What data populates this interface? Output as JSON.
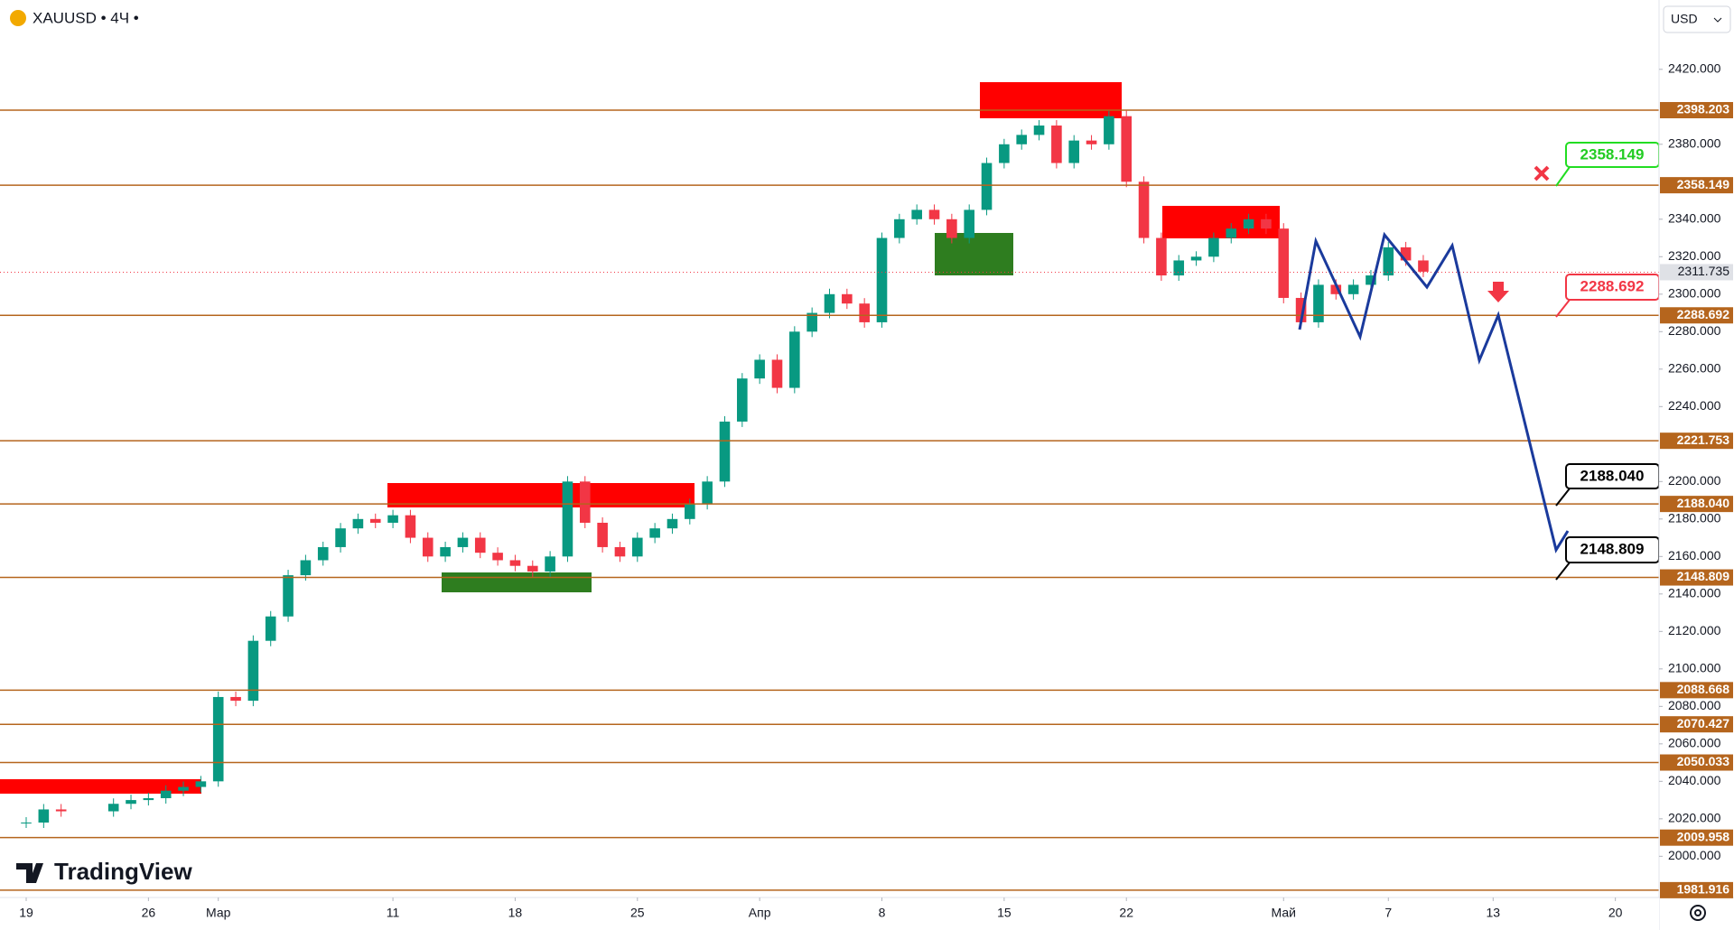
{
  "header": {
    "symbol": "XAUUSD • 4Ч •",
    "currency": "USD",
    "logo": "TradingView"
  },
  "chart_data": {
    "type": "candlestick",
    "x": [
      0,
      1,
      2,
      5,
      6,
      7,
      8,
      9,
      10,
      11,
      12,
      13,
      14,
      15,
      16,
      17,
      18,
      19,
      20,
      21,
      22,
      23,
      24,
      25,
      26,
      27,
      28,
      29,
      30,
      31,
      32,
      33,
      34,
      35,
      36,
      37,
      38,
      39,
      40,
      41,
      42,
      43,
      44,
      45,
      46,
      47,
      48,
      49,
      50,
      51,
      52,
      53,
      54,
      55,
      56,
      57,
      58,
      59,
      60,
      61,
      62,
      63,
      64,
      65,
      66,
      67,
      68,
      69,
      70,
      71,
      72,
      73,
      74,
      75,
      76,
      77,
      78,
      79,
      80
    ],
    "values": [
      2018,
      2025,
      2024,
      2028,
      2030,
      2031,
      2035,
      2037,
      2040,
      2085,
      2083,
      2115,
      2128,
      2150,
      2158,
      2165,
      2175,
      2180,
      2178,
      2182,
      2170,
      2160,
      2165,
      2170,
      2162,
      2158,
      2155,
      2152,
      2160,
      2200,
      2178,
      2165,
      2160,
      2170,
      2175,
      2180,
      2188,
      2200,
      2232,
      2255,
      2265,
      2250,
      2280,
      2290,
      2300,
      2295,
      2285,
      2330,
      2340,
      2345,
      2340,
      2330,
      2345,
      2370,
      2380,
      2385,
      2390,
      2370,
      2382,
      2380,
      2395,
      2360,
      2330,
      2310,
      2318,
      2320,
      2330,
      2335,
      2340,
      2335,
      2298,
      2285,
      2305,
      2300,
      2305,
      2310,
      2325,
      2318,
      2312
    ],
    "up_color": "#089981",
    "down_color": "#f23645",
    "xlim": [
      -1.5,
      93.5
    ],
    "xticks": [
      {
        "value": 0,
        "label": "19"
      },
      {
        "value": 7,
        "label": "26"
      },
      {
        "value": 11,
        "label": "Мар"
      },
      {
        "value": 21,
        "label": "11"
      },
      {
        "value": 28,
        "label": "18"
      },
      {
        "value": 35,
        "label": "25"
      },
      {
        "value": 42,
        "label": "Апр"
      },
      {
        "value": 49,
        "label": "8"
      },
      {
        "value": 56,
        "label": "15"
      },
      {
        "value": 63,
        "label": "22"
      },
      {
        "value": 72,
        "label": "Май"
      },
      {
        "value": 78,
        "label": "7"
      },
      {
        "value": 84,
        "label": "13"
      },
      {
        "value": 91,
        "label": "20"
      }
    ],
    "ylim": [
      1978,
      2457
    ],
    "yticks": [
      {
        "value": 2000,
        "label": "2000.000"
      },
      {
        "value": 2020,
        "label": "2020.000"
      },
      {
        "value": 2040,
        "label": "2040.000"
      },
      {
        "value": 2060,
        "label": "2060.000"
      },
      {
        "value": 2080,
        "label": "2080.000"
      },
      {
        "value": 2100,
        "label": "2100.000"
      },
      {
        "value": 2120,
        "label": "2120.000"
      },
      {
        "value": 2140,
        "label": "2140.000"
      },
      {
        "value": 2160,
        "label": "2160.000"
      },
      {
        "value": 2180,
        "label": "2180.000"
      },
      {
        "value": 2200,
        "label": "2200.000"
      },
      {
        "value": 2240,
        "label": "2240.000"
      },
      {
        "value": 2260,
        "label": "2260.000"
      },
      {
        "value": 2280,
        "label": "2280.000"
      },
      {
        "value": 2300,
        "label": "2300.000"
      },
      {
        "value": 2320,
        "label": "2320.000"
      },
      {
        "value": 2340,
        "label": "2340.000"
      },
      {
        "value": 2380,
        "label": "2380.000"
      },
      {
        "value": 2420,
        "label": "2420.000"
      }
    ],
    "levels": [
      2398.203,
      2358.149,
      2288.692,
      2221.753,
      {
        "value": 2188.04,
        "label": "2188.040"
      },
      2148.809,
      2088.668,
      2070.427,
      2050.033,
      2009.958,
      1981.916
    ],
    "level_color": "#b5651d",
    "last_price": 2311.735,
    "annotations": [
      "2358.149",
      "2288.692",
      "2188.040",
      "2148.809"
    ]
  }
}
